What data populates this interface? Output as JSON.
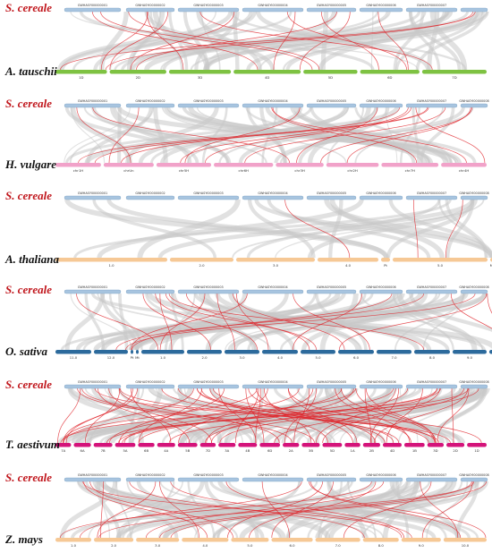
{
  "top_chrom_labels": [
    "GWHASYI00000001",
    "GWHASYI00000002",
    "GWHASYI00000003",
    "GWHASYI00000004",
    "GWHASYI00000005",
    "GWHASYI00000006",
    "GWHASYI00000007",
    "GWHASYI00000008"
  ],
  "colors": {
    "top_bar": "#a7c4df",
    "top_bar_stroke": "#7fa3c4",
    "background_link": "#c9c9c9",
    "highlight_link": "#e0262c",
    "label_reference": "#c0161c",
    "label_target": "#111111"
  },
  "panels": [
    {
      "id": "tauschii",
      "ref_label": "S. cereale",
      "target_label": "A. tauschii",
      "bar_color": "#7ec242",
      "show_last_top_label": false,
      "target_chroms": [
        "1D",
        "2D",
        "3D",
        "4D",
        "5D",
        "6D",
        "7D"
      ],
      "highlight_links": 16,
      "bg_links": 46
    },
    {
      "id": "vulgare",
      "ref_label": "S. cereale",
      "target_label": "H. vulgare",
      "bar_color": "#f1a2c9",
      "show_last_top_label": true,
      "target_chroms": [
        "chr1H",
        "chrUn",
        "chr5H",
        "chr6H",
        "chr3H",
        "chr2H",
        "chr7H",
        "chr4H"
      ],
      "highlight_links": 16,
      "bg_links": 48
    },
    {
      "id": "thaliana",
      "ref_label": "S. cereale",
      "target_label": "A. thaliana",
      "bar_color": "#f6c895",
      "show_last_top_label": true,
      "target_chroms": [
        "1.0",
        "2.0",
        "3.0",
        "4.0",
        "Pt",
        "5.0",
        "Mt"
      ],
      "highlight_links": 3,
      "bg_links": 22
    },
    {
      "id": "sativa",
      "ref_label": "S. cereale",
      "target_label": "O. sativa",
      "bar_color": "#2c6a9c",
      "show_last_top_label": true,
      "target_chroms": [
        "11.0",
        "12.0",
        "Pt",
        "Mt",
        "1.0",
        "2.0",
        "3.0",
        "4.0",
        "5.0",
        "6.0",
        "7.0",
        "8.0",
        "9.0",
        "10.0"
      ],
      "highlight_links": 20,
      "bg_links": 50
    },
    {
      "id": "aestivum",
      "ref_label": "S. cereale",
      "target_label": "T. aestivum",
      "bar_color": "#d4137a",
      "show_last_top_label": true,
      "target_chroms": [
        "7A",
        "6A",
        "7B",
        "5A",
        "6B",
        "4A",
        "5B",
        "7D",
        "3A",
        "4B",
        "6D",
        "2A",
        "3B",
        "5D",
        "1A",
        "2B",
        "4D",
        "1B",
        "3D",
        "2D",
        "1D"
      ],
      "highlight_links": 60,
      "bg_links": 70
    },
    {
      "id": "mays",
      "ref_label": "S. cereale",
      "target_label": "Z. mays",
      "bar_color": "#f6c895",
      "show_last_top_label": true,
      "target_chroms": [
        "1.0",
        "2.0",
        "3.0",
        "4.0",
        "5.0",
        "6.0",
        "7.0",
        "8.0",
        "9.0",
        "10.0"
      ],
      "highlight_links": 24,
      "bg_links": 55
    }
  ]
}
